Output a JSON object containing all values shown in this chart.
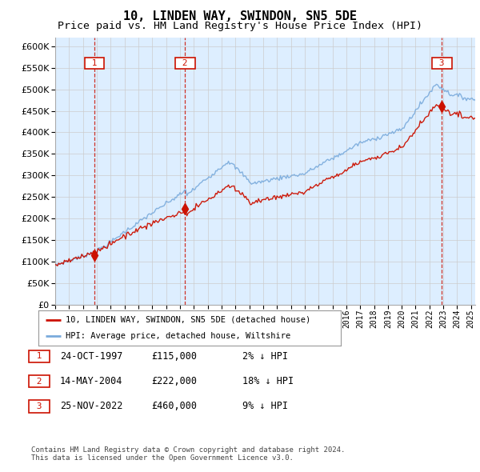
{
  "title": "10, LINDEN WAY, SWINDON, SN5 5DE",
  "subtitle": "Price paid vs. HM Land Registry's House Price Index (HPI)",
  "ylim": [
    0,
    620000
  ],
  "yticks": [
    0,
    50000,
    100000,
    150000,
    200000,
    250000,
    300000,
    350000,
    400000,
    450000,
    500000,
    550000,
    600000
  ],
  "xlim_start": 1995.0,
  "xlim_end": 2025.3,
  "sale_dates": [
    1997.82,
    2004.37,
    2022.9
  ],
  "sale_prices": [
    115000,
    222000,
    460000
  ],
  "sale_labels": [
    "1",
    "2",
    "3"
  ],
  "background_color": "#ffffff",
  "plot_bg_color": "#ddeeff",
  "grid_color": "#cccccc",
  "hpi_color": "#7aabdc",
  "price_color": "#cc1100",
  "vline_color": "#cc1100",
  "legend_text_1": "10, LINDEN WAY, SWINDON, SN5 5DE (detached house)",
  "legend_text_2": "HPI: Average price, detached house, Wiltshire",
  "table_rows": [
    [
      "1",
      "24-OCT-1997",
      "£115,000",
      "2% ↓ HPI"
    ],
    [
      "2",
      "14-MAY-2004",
      "£222,000",
      "18% ↓ HPI"
    ],
    [
      "3",
      "25-NOV-2022",
      "£460,000",
      "9% ↓ HPI"
    ]
  ],
  "footer": "Contains HM Land Registry data © Crown copyright and database right 2024.\nThis data is licensed under the Open Government Licence v3.0.",
  "title_fontsize": 11,
  "subtitle_fontsize": 9.5
}
